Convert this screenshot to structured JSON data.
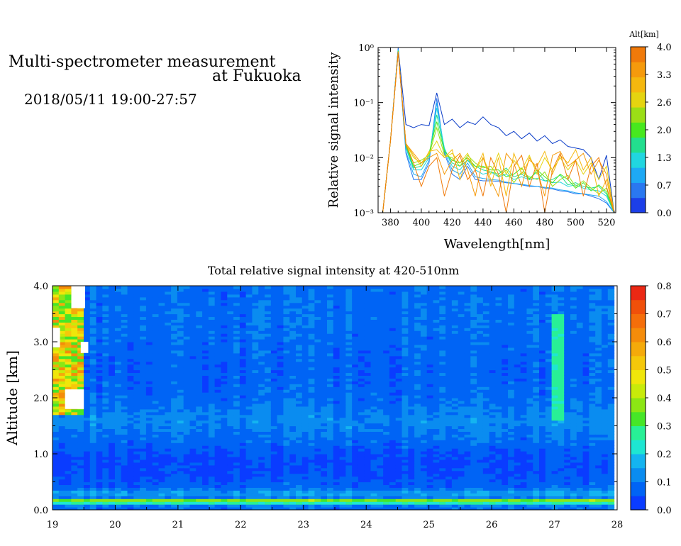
{
  "header": {
    "title_line1": "Multi-spectrometer measurement",
    "title_line2": "at Fukuoka",
    "datetime": "2018/05/11 19:00-27:57"
  },
  "chart_data": [
    {
      "type": "line",
      "xlabel": "Wavelength[nm]",
      "ylabel": "Relative signal intensity",
      "xlim": [
        372,
        526
      ],
      "ylim": [
        0.001,
        1
      ],
      "yscale": "log",
      "x_ticks": [
        380,
        400,
        420,
        440,
        460,
        480,
        500,
        520
      ],
      "y_ticks": [
        {
          "value": 1,
          "label": "10⁰"
        },
        {
          "value": 0.1,
          "label": "10⁻¹"
        },
        {
          "value": 0.01,
          "label": "10⁻²"
        },
        {
          "value": 0.001,
          "label": "10⁻³"
        }
      ],
      "colorbar": {
        "title": "Alt[km]",
        "tick_labels": [
          "4.0",
          "3.3",
          "2.6",
          "2.0",
          "1.3",
          "0.7",
          "0.0"
        ],
        "colors": [
          "#1c3fe8",
          "#2a78f0",
          "#1ea9f5",
          "#21d6e0",
          "#22de8e",
          "#47e81e",
          "#9bde16",
          "#e5d410",
          "#f5b80e",
          "#f59a0c",
          "#f07a0a"
        ]
      },
      "x": [
        375,
        380,
        385,
        390,
        395,
        400,
        405,
        410,
        415,
        420,
        425,
        430,
        435,
        440,
        445,
        450,
        455,
        460,
        465,
        470,
        475,
        480,
        485,
        490,
        495,
        500,
        505,
        510,
        515,
        520,
        525
      ],
      "series": [
        {
          "color": "#0a3cc8",
          "values": [
            0.001,
            0.02,
            0.98,
            0.04,
            0.035,
            0.04,
            0.038,
            0.15,
            0.04,
            0.05,
            0.035,
            0.045,
            0.04,
            0.055,
            0.04,
            0.035,
            0.025,
            0.03,
            0.022,
            0.028,
            0.02,
            0.025,
            0.018,
            0.021,
            0.016,
            0.015,
            0.014,
            0.01,
            0.004,
            0.011,
            0.001
          ]
        },
        {
          "color": "#2a78f0",
          "values": [
            0.001,
            0.02,
            0.95,
            0.012,
            0.004,
            0.004,
            0.008,
            0.12,
            0.012,
            0.005,
            0.004,
            0.007,
            0.004,
            0.0038,
            0.0038,
            0.0037,
            0.0035,
            0.0034,
            0.0032,
            0.003,
            0.003,
            0.0028,
            0.0027,
            0.0025,
            0.0024,
            0.0022,
            0.0022,
            0.002,
            0.0018,
            0.0015,
            0.001
          ]
        },
        {
          "color": "#1ea9f5",
          "values": [
            0.001,
            0.02,
            0.93,
            0.013,
            0.005,
            0.0045,
            0.009,
            0.1,
            0.013,
            0.006,
            0.005,
            0.008,
            0.0045,
            0.0042,
            0.004,
            0.0039,
            0.0036,
            0.0034,
            0.0033,
            0.0031,
            0.003,
            0.0029,
            0.0028,
            0.0026,
            0.0025,
            0.0023,
            0.0022,
            0.0021,
            0.002,
            0.0016,
            0.001
          ]
        },
        {
          "color": "#21d6e0",
          "values": [
            0.001,
            0.02,
            0.9,
            0.015,
            0.006,
            0.006,
            0.01,
            0.08,
            0.015,
            0.007,
            0.006,
            0.009,
            0.006,
            0.005,
            0.0055,
            0.0045,
            0.005,
            0.004,
            0.0045,
            0.004,
            0.0042,
            0.0038,
            0.0035,
            0.0036,
            0.003,
            0.0032,
            0.0028,
            0.0026,
            0.0025,
            0.002,
            0.001
          ]
        },
        {
          "color": "#22de8e",
          "values": [
            0.001,
            0.02,
            0.88,
            0.016,
            0.0065,
            0.007,
            0.011,
            0.06,
            0.014,
            0.008,
            0.007,
            0.009,
            0.007,
            0.006,
            0.0055,
            0.005,
            0.0065,
            0.0045,
            0.005,
            0.0042,
            0.0055,
            0.0038,
            0.004,
            0.0048,
            0.0032,
            0.0035,
            0.003,
            0.0028,
            0.003,
            0.0022,
            0.001
          ]
        },
        {
          "color": "#47e81e",
          "values": [
            0.001,
            0.02,
            0.86,
            0.017,
            0.007,
            0.008,
            0.012,
            0.045,
            0.013,
            0.009,
            0.008,
            0.01,
            0.007,
            0.007,
            0.006,
            0.006,
            0.0045,
            0.005,
            0.0065,
            0.004,
            0.006,
            0.0045,
            0.0035,
            0.005,
            0.004,
            0.0028,
            0.0035,
            0.0025,
            0.0032,
            0.0024,
            0.001
          ]
        },
        {
          "color": "#9bde16",
          "values": [
            0.001,
            0.02,
            0.85,
            0.018,
            0.008,
            0.009,
            0.011,
            0.035,
            0.011,
            0.01,
            0.007,
            0.011,
            0.008,
            0.0065,
            0.007,
            0.0045,
            0.006,
            0.0035,
            0.0055,
            0.0045,
            0.004,
            0.0055,
            0.003,
            0.004,
            0.0048,
            0.003,
            0.0038,
            0.0028,
            0.0022,
            0.0028,
            0.001
          ]
        },
        {
          "color": "#e5d410",
          "values": [
            0.001,
            0.02,
            0.84,
            0.018,
            0.01,
            0.008,
            0.012,
            0.02,
            0.01,
            0.012,
            0.008,
            0.012,
            0.006,
            0.01,
            0.005,
            0.012,
            0.005,
            0.009,
            0.006,
            0.011,
            0.005,
            0.01,
            0.006,
            0.01,
            0.006,
            0.009,
            0.005,
            0.008,
            0.004,
            0.007,
            0.001
          ]
        },
        {
          "color": "#f5b80e",
          "values": [
            0.001,
            0.02,
            0.83,
            0.018,
            0.011,
            0.007,
            0.013,
            0.014,
            0.01,
            0.014,
            0.004,
            0.01,
            0.006,
            0.012,
            0.003,
            0.01,
            0.002,
            0.012,
            0.005,
            0.009,
            0.007,
            0.013,
            0.005,
            0.011,
            0.008,
            0.014,
            0.006,
            0.01,
            0.002,
            0.004,
            0.001
          ]
        },
        {
          "color": "#f59a0c",
          "values": [
            0.001,
            0.02,
            0.82,
            0.018,
            0.012,
            0.008,
            0.01,
            0.012,
            0.005,
            0.009,
            0.012,
            0.006,
            0.002,
            0.01,
            0.004,
            0.002,
            0.012,
            0.008,
            0.003,
            0.01,
            0.006,
            0.002,
            0.011,
            0.013,
            0.007,
            0.009,
            0.012,
            0.005,
            0.009,
            0.005,
            0.001
          ]
        },
        {
          "color": "#f07a0a",
          "values": [
            0.001,
            0.02,
            0.8,
            0.017,
            0.008,
            0.003,
            0.007,
            0.01,
            0.002,
            0.006,
            0.011,
            0.004,
            0.006,
            0.002,
            0.01,
            0.005,
            0.001,
            0.007,
            0.011,
            0.003,
            0.008,
            0.001,
            0.006,
            0.012,
            0.004,
            0.009,
            0.002,
            0.007,
            0.01,
            0.003,
            0.001
          ]
        }
      ]
    },
    {
      "type": "heatmap",
      "title": "Total relative signal intensity at 420-510nm",
      "xlabel": "",
      "ylabel": "Altitude [km]",
      "xlim": [
        19,
        28
      ],
      "ylim": [
        0,
        4
      ],
      "x_ticks": [
        19,
        20,
        21,
        22,
        23,
        24,
        25,
        26,
        27,
        28
      ],
      "y_ticks": [
        {
          "value": 0,
          "label": "0.0"
        },
        {
          "value": 1,
          "label": "1.0"
        },
        {
          "value": 2,
          "label": "2.0"
        },
        {
          "value": 3,
          "label": "3.0"
        },
        {
          "value": 4,
          "label": "4.0"
        }
      ],
      "data_x_range": [
        19,
        27.95
      ],
      "colorbar": {
        "tick_labels": [
          "0.0",
          "0.1",
          "0.2",
          "0.3",
          "0.4",
          "0.5",
          "0.6",
          "0.7",
          "0.8"
        ],
        "range": [
          0,
          0.8
        ],
        "colors": [
          "#0a3cff",
          "#0064f5",
          "#0a8cf0",
          "#14b4f0",
          "#1ee6d2",
          "#28f096",
          "#46e628",
          "#8ce614",
          "#c8eb0a",
          "#f0e60a",
          "#f5c80a",
          "#f5aa0a",
          "#f58c0a",
          "#f56e0a",
          "#f0500a",
          "#eb2814"
        ]
      },
      "profile": [
        {
          "alt": 0.0,
          "value": 0.08
        },
        {
          "alt": 0.1,
          "value": 0.1
        },
        {
          "alt": 0.16,
          "value": 0.45
        },
        {
          "alt": 0.22,
          "value": 0.1
        },
        {
          "alt": 0.3,
          "value": 0.16
        },
        {
          "alt": 0.4,
          "value": 0.07
        },
        {
          "alt": 0.6,
          "value": 0.05
        },
        {
          "alt": 0.8,
          "value": 0.04
        },
        {
          "alt": 1.0,
          "value": 0.05
        },
        {
          "alt": 1.3,
          "value": 0.09
        },
        {
          "alt": 1.6,
          "value": 0.12
        },
        {
          "alt": 2.0,
          "value": 0.08
        },
        {
          "alt": 2.5,
          "value": 0.07
        },
        {
          "alt": 3.0,
          "value": 0.08
        },
        {
          "alt": 3.5,
          "value": 0.09
        },
        {
          "alt": 4.0,
          "value": 0.08
        }
      ]
    }
  ]
}
